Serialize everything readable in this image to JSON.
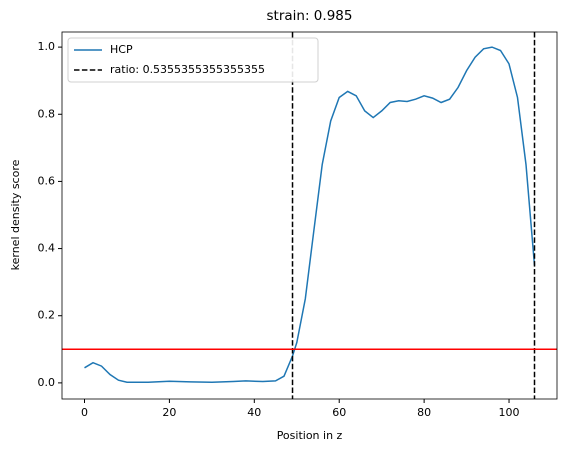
{
  "chart_data": {
    "type": "line",
    "title": "strain: 0.985",
    "x_label": "Position in z",
    "y_label": "kernel density score",
    "x": [
      0,
      2,
      4,
      6,
      8,
      10,
      15,
      20,
      25,
      30,
      35,
      38,
      42,
      45,
      47,
      49,
      50,
      52,
      54,
      56,
      58,
      60,
      62,
      64,
      66,
      68,
      70,
      72,
      74,
      76,
      78,
      80,
      82,
      84,
      86,
      88,
      90,
      92,
      94,
      96,
      98,
      100,
      102,
      104,
      106
    ],
    "series": [
      {
        "name": "HCP",
        "color": "#1f77b4",
        "values": [
          0.045,
          0.06,
          0.05,
          0.025,
          0.008,
          0.002,
          0.002,
          0.005,
          0.003,
          0.002,
          0.004,
          0.006,
          0.004,
          0.006,
          0.02,
          0.08,
          0.12,
          0.25,
          0.45,
          0.65,
          0.78,
          0.85,
          0.868,
          0.855,
          0.81,
          0.79,
          0.81,
          0.835,
          0.84,
          0.838,
          0.845,
          0.855,
          0.848,
          0.835,
          0.845,
          0.88,
          0.93,
          0.97,
          0.995,
          1.0,
          0.99,
          0.95,
          0.85,
          0.65,
          0.35
        ]
      }
    ],
    "vlines": {
      "name": "ratio: 0.5355355355355355",
      "color": "#000000",
      "x": [
        49,
        106
      ]
    },
    "hlines": {
      "color": "#ff0000",
      "y": [
        0.1
      ]
    },
    "xlim": [
      -5.3,
      111.3
    ],
    "ylim": [
      -0.048,
      1.045
    ],
    "xticks": [
      0,
      20,
      40,
      60,
      80,
      100
    ],
    "yticks": [
      {
        "value": 0,
        "label": "0.0"
      },
      {
        "value": 0.2,
        "label": "0.2"
      },
      {
        "value": 0.4,
        "label": "0.4"
      },
      {
        "value": 0.6,
        "label": "0.6"
      },
      {
        "value": 0.8,
        "label": "0.8"
      },
      {
        "value": 1,
        "label": "1.0"
      }
    ],
    "legend": "upper left"
  }
}
